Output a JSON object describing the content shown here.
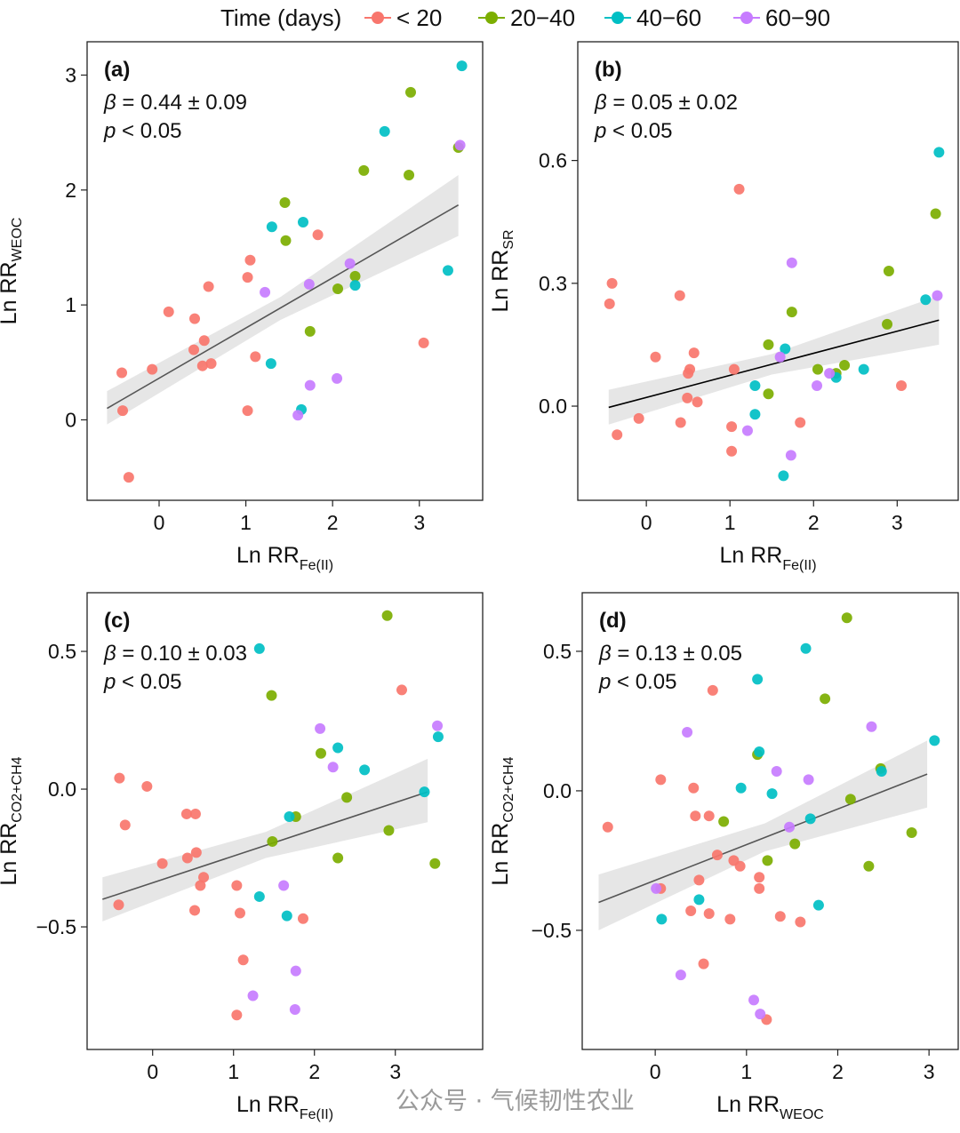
{
  "legend": {
    "title": "Time (days)",
    "items": [
      {
        "label": "< 20",
        "color": "#F8766D"
      },
      {
        "label": "20−40",
        "color": "#7CAE00"
      },
      {
        "label": "40−60",
        "color": "#00BFC4"
      },
      {
        "label": "60−90",
        "color": "#C77CFF"
      }
    ]
  },
  "watermark": "公众号 · 气候韧性农业",
  "chart_data": [
    {
      "type": "scatter",
      "panel_label": "(a)",
      "stat_beta": "= 0.44 ± 0.09",
      "stat_p": "< 0.05",
      "xlabel": {
        "main": "Ln RR",
        "sub": "Fe(II)"
      },
      "ylabel": {
        "main": "Ln RR",
        "sub": "WEOC"
      },
      "xlim": [
        -0.83,
        3.73
      ],
      "ylim": [
        -0.7,
        3.29
      ],
      "xticks": [
        0,
        1,
        2,
        3
      ],
      "xtick_labels": [
        "0",
        "1",
        "2",
        "3"
      ],
      "yticks": [
        0,
        1,
        2,
        3
      ],
      "ytick_labels": [
        "0",
        "1",
        "2",
        "3"
      ],
      "fit_line": [
        [
          -0.6,
          0.1
        ],
        [
          3.45,
          1.87
        ]
      ],
      "ci_band": [
        [
          -0.6,
          -0.04,
          0.25
        ],
        [
          1.4,
          0.87,
          1.07
        ],
        [
          3.45,
          1.6,
          2.13
        ]
      ],
      "series": [
        {
          "name": "< 20",
          "points": [
            [
              -0.43,
              0.41
            ],
            [
              -0.42,
              0.08
            ],
            [
              -0.35,
              -0.5
            ],
            [
              -0.08,
              0.44
            ],
            [
              0.11,
              0.94
            ],
            [
              0.41,
              0.88
            ],
            [
              0.4,
              0.61
            ],
            [
              0.52,
              0.69
            ],
            [
              0.5,
              0.47
            ],
            [
              0.6,
              0.49
            ],
            [
              0.57,
              1.16
            ],
            [
              1.02,
              0.08
            ],
            [
              1.02,
              1.24
            ],
            [
              1.05,
              1.39
            ],
            [
              1.11,
              0.55
            ],
            [
              1.83,
              1.61
            ],
            [
              3.05,
              0.67
            ]
          ]
        },
        {
          "name": "20−40",
          "points": [
            [
              1.45,
              1.89
            ],
            [
              1.46,
              1.56
            ],
            [
              1.74,
              0.77
            ],
            [
              2.06,
              1.14
            ],
            [
              2.26,
              1.25
            ],
            [
              2.36,
              2.17
            ],
            [
              2.88,
              2.13
            ],
            [
              2.9,
              2.85
            ],
            [
              3.45,
              2.37
            ]
          ]
        },
        {
          "name": "40−60",
          "points": [
            [
              1.3,
              1.68
            ],
            [
              1.66,
              1.72
            ],
            [
              1.29,
              0.49
            ],
            [
              1.64,
              0.09
            ],
            [
              2.26,
              1.17
            ],
            [
              2.6,
              2.51
            ],
            [
              3.33,
              1.3
            ],
            [
              3.49,
              3.08
            ]
          ]
        },
        {
          "name": "60−90",
          "points": [
            [
              1.22,
              1.11
            ],
            [
              1.73,
              1.18
            ],
            [
              2.2,
              1.36
            ],
            [
              1.74,
              0.3
            ],
            [
              2.05,
              0.36
            ],
            [
              1.6,
              0.04
            ],
            [
              3.47,
              2.39
            ]
          ]
        }
      ]
    },
    {
      "type": "scatter",
      "panel_label": "(b)",
      "stat_beta": "= 0.05 ± 0.02",
      "stat_p": "< 0.05",
      "xlabel": {
        "main": "Ln RR",
        "sub": "Fe(II)"
      },
      "ylabel": {
        "main": "Ln RR",
        "sub": "SR"
      },
      "xlim": [
        -0.82,
        3.73
      ],
      "ylim": [
        -0.23,
        0.89
      ],
      "xticks": [
        0,
        1,
        2,
        3
      ],
      "xtick_labels": [
        "0",
        "1",
        "2",
        "3"
      ],
      "yticks": [
        0,
        0.3,
        0.6
      ],
      "ytick_labels": [
        "0.0",
        "0.3",
        "0.6"
      ],
      "fit_line": [
        [
          -0.45,
          -0.003
        ],
        [
          3.5,
          0.21
        ]
      ],
      "ci_band": [
        [
          -0.45,
          -0.045,
          0.04
        ],
        [
          1.5,
          0.077,
          0.127
        ],
        [
          3.5,
          0.15,
          0.27
        ]
      ],
      "series": [
        {
          "name": "< 20",
          "points": [
            [
              -0.41,
              0.3
            ],
            [
              -0.44,
              0.25
            ],
            [
              -0.35,
              -0.07
            ],
            [
              -0.09,
              -0.03
            ],
            [
              0.11,
              0.12
            ],
            [
              0.4,
              0.27
            ],
            [
              0.41,
              -0.04
            ],
            [
              0.52,
              0.09
            ],
            [
              0.57,
              0.13
            ],
            [
              0.5,
              0.08
            ],
            [
              0.49,
              0.02
            ],
            [
              0.61,
              0.01
            ],
            [
              1.05,
              0.09
            ],
            [
              1.11,
              0.53
            ],
            [
              1.02,
              -0.05
            ],
            [
              1.02,
              -0.11
            ],
            [
              1.84,
              -0.04
            ],
            [
              3.05,
              0.05
            ]
          ]
        },
        {
          "name": "20−40",
          "points": [
            [
              1.46,
              0.15
            ],
            [
              1.46,
              0.03
            ],
            [
              1.74,
              0.23
            ],
            [
              2.05,
              0.09
            ],
            [
              2.27,
              0.08
            ],
            [
              2.37,
              0.1
            ],
            [
              2.88,
              0.2
            ],
            [
              2.9,
              0.33
            ],
            [
              3.46,
              0.47
            ]
          ]
        },
        {
          "name": "40−60",
          "points": [
            [
              1.66,
              0.14
            ],
            [
              1.3,
              0.05
            ],
            [
              1.3,
              -0.02
            ],
            [
              1.64,
              -0.17
            ],
            [
              2.27,
              0.07
            ],
            [
              2.6,
              0.09
            ],
            [
              3.34,
              0.26
            ],
            [
              3.5,
              0.62
            ]
          ]
        },
        {
          "name": "60−90",
          "points": [
            [
              1.6,
              0.12
            ],
            [
              1.74,
              0.35
            ],
            [
              1.21,
              -0.06
            ],
            [
              1.73,
              -0.12
            ],
            [
              2.04,
              0.05
            ],
            [
              2.19,
              0.08
            ],
            [
              3.48,
              0.27
            ]
          ]
        }
      ]
    },
    {
      "type": "scatter",
      "panel_label": "(c)",
      "stat_beta": "= 0.10 ± 0.03",
      "stat_p": "< 0.05",
      "xlabel": {
        "main": "Ln RR",
        "sub": "Fe(II)"
      },
      "ylabel": {
        "main": "Ln RR",
        "sub": "CO2+CH4"
      },
      "xlim": [
        -0.81,
        4.08
      ],
      "ylim": [
        -0.945,
        0.713
      ],
      "xticks": [
        0,
        1,
        2,
        3
      ],
      "xtick_labels": [
        "0",
        "1",
        "2",
        "3"
      ],
      "yticks": [
        -0.5,
        0,
        0.5
      ],
      "ytick_labels": [
        "−0.5",
        "0.0",
        "0.5"
      ],
      "fit_line": [
        [
          -0.62,
          -0.4
        ],
        [
          3.4,
          -0.01
        ]
      ],
      "ci_band": [
        [
          -0.62,
          -0.48,
          -0.32
        ],
        [
          1.4,
          -0.25,
          -0.155
        ],
        [
          3.4,
          -0.12,
          0.11
        ]
      ],
      "series": [
        {
          "name": "< 20",
          "points": [
            [
              -0.41,
              0.04
            ],
            [
              -0.07,
              0.01
            ],
            [
              -0.34,
              -0.13
            ],
            [
              0.42,
              -0.09
            ],
            [
              0.53,
              -0.09
            ],
            [
              0.12,
              -0.27
            ],
            [
              0.43,
              -0.25
            ],
            [
              0.54,
              -0.23
            ],
            [
              0.63,
              -0.32
            ],
            [
              0.59,
              -0.35
            ],
            [
              -0.42,
              -0.42
            ],
            [
              0.52,
              -0.44
            ],
            [
              1.04,
              -0.35
            ],
            [
              1.08,
              -0.45
            ],
            [
              1.86,
              -0.47
            ],
            [
              1.12,
              -0.62
            ],
            [
              1.04,
              -0.82
            ],
            [
              3.08,
              0.36
            ]
          ]
        },
        {
          "name": "20−40",
          "points": [
            [
              2.9,
              0.63
            ],
            [
              1.47,
              0.34
            ],
            [
              2.08,
              0.13
            ],
            [
              2.4,
              -0.03
            ],
            [
              1.77,
              -0.1
            ],
            [
              1.48,
              -0.19
            ],
            [
              2.92,
              -0.15
            ],
            [
              2.29,
              -0.25
            ],
            [
              3.49,
              -0.27
            ]
          ]
        },
        {
          "name": "40−60",
          "points": [
            [
              1.32,
              0.51
            ],
            [
              2.29,
              0.15
            ],
            [
              2.62,
              0.07
            ],
            [
              3.53,
              0.19
            ],
            [
              3.36,
              -0.01
            ],
            [
              1.69,
              -0.1
            ],
            [
              1.32,
              -0.39
            ],
            [
              1.66,
              -0.46
            ]
          ]
        },
        {
          "name": "60−90",
          "points": [
            [
              2.07,
              0.22
            ],
            [
              2.23,
              0.08
            ],
            [
              3.52,
              0.23
            ],
            [
              1.62,
              -0.35
            ],
            [
              1.77,
              -0.66
            ],
            [
              1.24,
              -0.75
            ],
            [
              1.76,
              -0.8
            ]
          ]
        }
      ]
    },
    {
      "type": "scatter",
      "panel_label": "(d)",
      "stat_beta": "= 0.13 ± 0.05",
      "stat_p": "< 0.05",
      "xlabel": {
        "main": "Ln RR",
        "sub": "WEOC"
      },
      "ylabel": {
        "main": "Ln RR",
        "sub": "CO2+CH4"
      },
      "xlim": [
        -0.8,
        3.32
      ],
      "ylim": [
        -0.927,
        0.71
      ],
      "xticks": [
        0,
        1,
        2,
        3
      ],
      "xtick_labels": [
        "0",
        "1",
        "2",
        "3"
      ],
      "yticks": [
        -0.5,
        0,
        0.5
      ],
      "ytick_labels": [
        "−0.5",
        "0.0",
        "0.5"
      ],
      "fit_line": [
        [
          -0.62,
          -0.4
        ],
        [
          2.98,
          0.06
        ]
      ],
      "ci_band": [
        [
          -0.62,
          -0.5,
          -0.3
        ],
        [
          1.2,
          -0.217,
          -0.117
        ],
        [
          2.98,
          -0.06,
          0.18
        ]
      ],
      "series": [
        {
          "name": "< 20",
          "points": [
            [
              -0.52,
              -0.13
            ],
            [
              0.06,
              0.04
            ],
            [
              0.42,
              0.01
            ],
            [
              0.44,
              -0.09
            ],
            [
              0.59,
              -0.09
            ],
            [
              0.63,
              0.36
            ],
            [
              0.68,
              -0.23
            ],
            [
              0.86,
              -0.25
            ],
            [
              0.93,
              -0.27
            ],
            [
              0.48,
              -0.32
            ],
            [
              0.06,
              -0.35
            ],
            [
              0.39,
              -0.43
            ],
            [
              0.59,
              -0.44
            ],
            [
              0.82,
              -0.46
            ],
            [
              1.14,
              -0.31
            ],
            [
              1.14,
              -0.35
            ],
            [
              1.37,
              -0.45
            ],
            [
              1.59,
              -0.47
            ],
            [
              0.53,
              -0.62
            ],
            [
              1.22,
              -0.82
            ]
          ]
        },
        {
          "name": "20−40",
          "points": [
            [
              2.1,
              0.62
            ],
            [
              1.86,
              0.33
            ],
            [
              1.12,
              0.13
            ],
            [
              0.75,
              -0.11
            ],
            [
              1.23,
              -0.25
            ],
            [
              1.53,
              -0.19
            ],
            [
              2.14,
              -0.03
            ],
            [
              2.47,
              0.08
            ],
            [
              2.34,
              -0.27
            ],
            [
              2.81,
              -0.15
            ]
          ]
        },
        {
          "name": "40−60",
          "points": [
            [
              1.65,
              0.51
            ],
            [
              1.12,
              0.4
            ],
            [
              1.14,
              0.14
            ],
            [
              0.94,
              0.01
            ],
            [
              1.28,
              -0.01
            ],
            [
              2.48,
              0.07
            ],
            [
              3.06,
              0.18
            ],
            [
              1.7,
              -0.1
            ],
            [
              0.48,
              -0.39
            ],
            [
              0.07,
              -0.46
            ],
            [
              1.79,
              -0.41
            ]
          ]
        },
        {
          "name": "60−90",
          "points": [
            [
              0.35,
              0.21
            ],
            [
              1.33,
              0.07
            ],
            [
              1.68,
              0.04
            ],
            [
              2.37,
              0.23
            ],
            [
              1.47,
              -0.13
            ],
            [
              0.01,
              -0.35
            ],
            [
              0.28,
              -0.66
            ],
            [
              1.08,
              -0.75
            ],
            [
              1.15,
              -0.8
            ]
          ]
        }
      ]
    }
  ]
}
